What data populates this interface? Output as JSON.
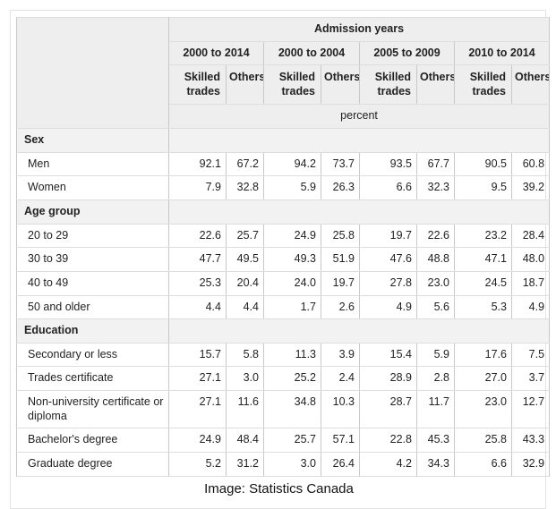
{
  "caption": "Image: Statistics Canada",
  "colors": {
    "header_bg": "#eeeeee",
    "section_bg": "#f2f2f2",
    "vertical_border": "#c8c8c8",
    "horizontal_border": "#dddddd",
    "text": "#222222",
    "frame_border": "#e3e3e3"
  },
  "chart_data": {
    "type": "table",
    "title": "Admission years",
    "unit": "percent",
    "column_groups": [
      "2000 to 2014",
      "2000 to 2004",
      "2005 to 2009",
      "2010 to 2014"
    ],
    "sub_columns": [
      "Skilled trades",
      "Others"
    ],
    "sections": [
      {
        "label": "Sex",
        "rows": [
          {
            "label": "Men",
            "values": [
              "92.1",
              "67.2",
              "94.2",
              "73.7",
              "93.5",
              "67.7",
              "90.5",
              "60.8"
            ]
          },
          {
            "label": "Women",
            "values": [
              "7.9",
              "32.8",
              "5.9",
              "26.3",
              "6.6",
              "32.3",
              "9.5",
              "39.2"
            ]
          }
        ]
      },
      {
        "label": "Age group",
        "rows": [
          {
            "label": "20 to 29",
            "values": [
              "22.6",
              "25.7",
              "24.9",
              "25.8",
              "19.7",
              "22.6",
              "23.2",
              "28.4"
            ]
          },
          {
            "label": "30 to 39",
            "values": [
              "47.7",
              "49.5",
              "49.3",
              "51.9",
              "47.6",
              "48.8",
              "47.1",
              "48.0"
            ]
          },
          {
            "label": "40 to 49",
            "values": [
              "25.3",
              "20.4",
              "24.0",
              "19.7",
              "27.8",
              "23.0",
              "24.5",
              "18.7"
            ]
          },
          {
            "label": "50 and older",
            "values": [
              "4.4",
              "4.4",
              "1.7",
              "2.6",
              "4.9",
              "5.6",
              "5.3",
              "4.9"
            ]
          }
        ]
      },
      {
        "label": "Education",
        "rows": [
          {
            "label": "Secondary or less",
            "values": [
              "15.7",
              "5.8",
              "11.3",
              "3.9",
              "15.4",
              "5.9",
              "17.6",
              "7.5"
            ]
          },
          {
            "label": "Trades certificate",
            "values": [
              "27.1",
              "3.0",
              "25.2",
              "2.4",
              "28.9",
              "2.8",
              "27.0",
              "3.7"
            ]
          },
          {
            "label": "Non-university certificate or diploma",
            "values": [
              "27.1",
              "11.6",
              "34.8",
              "10.3",
              "28.7",
              "11.7",
              "23.0",
              "12.7"
            ]
          },
          {
            "label": "Bachelor's degree",
            "values": [
              "24.9",
              "48.4",
              "25.7",
              "57.1",
              "22.8",
              "45.3",
              "25.8",
              "43.3"
            ]
          },
          {
            "label": "Graduate degree",
            "values": [
              "5.2",
              "31.2",
              "3.0",
              "26.4",
              "4.2",
              "34.3",
              "6.6",
              "32.9"
            ]
          }
        ]
      }
    ]
  }
}
